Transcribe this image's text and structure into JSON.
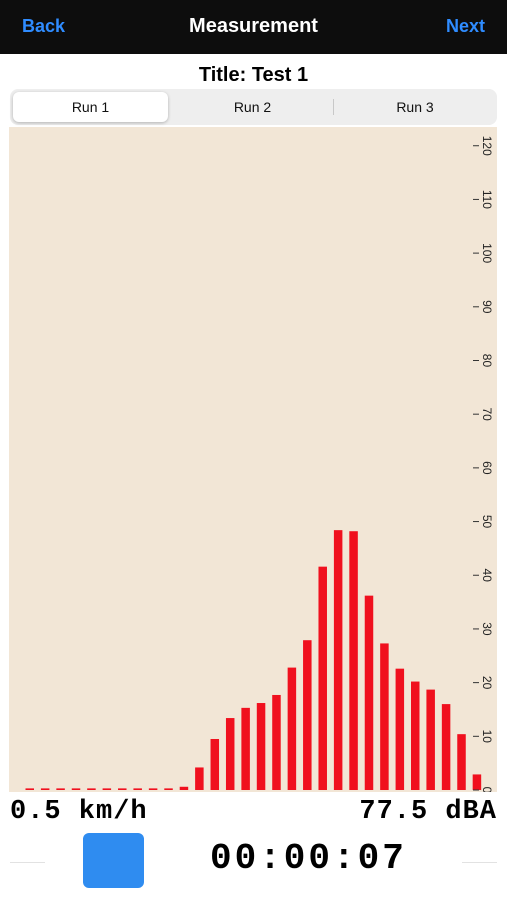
{
  "navbar": {
    "back_label": "Back",
    "title": "Measurement",
    "next_label": "Next"
  },
  "page_title": "Title: Test 1",
  "tabs": [
    {
      "label": "Run 1",
      "selected": true
    },
    {
      "label": "Run 2",
      "selected": false
    },
    {
      "label": "Run 3",
      "selected": false
    }
  ],
  "colors": {
    "chart_background": "#f2e6d6",
    "bar": "#f0101e",
    "accent": "#2f8cff",
    "stop_button": "#2f8cf0"
  },
  "chart_data": {
    "type": "bar",
    "title": "",
    "xlabel": "",
    "ylabel": "",
    "ylim": [
      0,
      122
    ],
    "yticks": [
      "0",
      "10",
      "20",
      "30",
      "40",
      "50",
      "60",
      "70",
      "80",
      "90",
      "100",
      "110",
      "120"
    ],
    "y_axis_position": "right",
    "y_tick_rotation": "90deg",
    "values": [
      0.3,
      0.3,
      0.3,
      0.3,
      0.3,
      0.3,
      0.3,
      0.3,
      0.3,
      0.3,
      0.6,
      4.2,
      9.5,
      13.4,
      15.3,
      16.2,
      17.7,
      22.8,
      27.9,
      41.6,
      48.4,
      48.2,
      36.2,
      27.3,
      22.6,
      20.2,
      18.7,
      16.0,
      10.4,
      2.9
    ]
  },
  "readouts": {
    "speed": "0.5 km/h",
    "level": "77.5 dBA"
  },
  "controls": {
    "stop_icon": "stop-square",
    "timer": "00:00:07"
  }
}
